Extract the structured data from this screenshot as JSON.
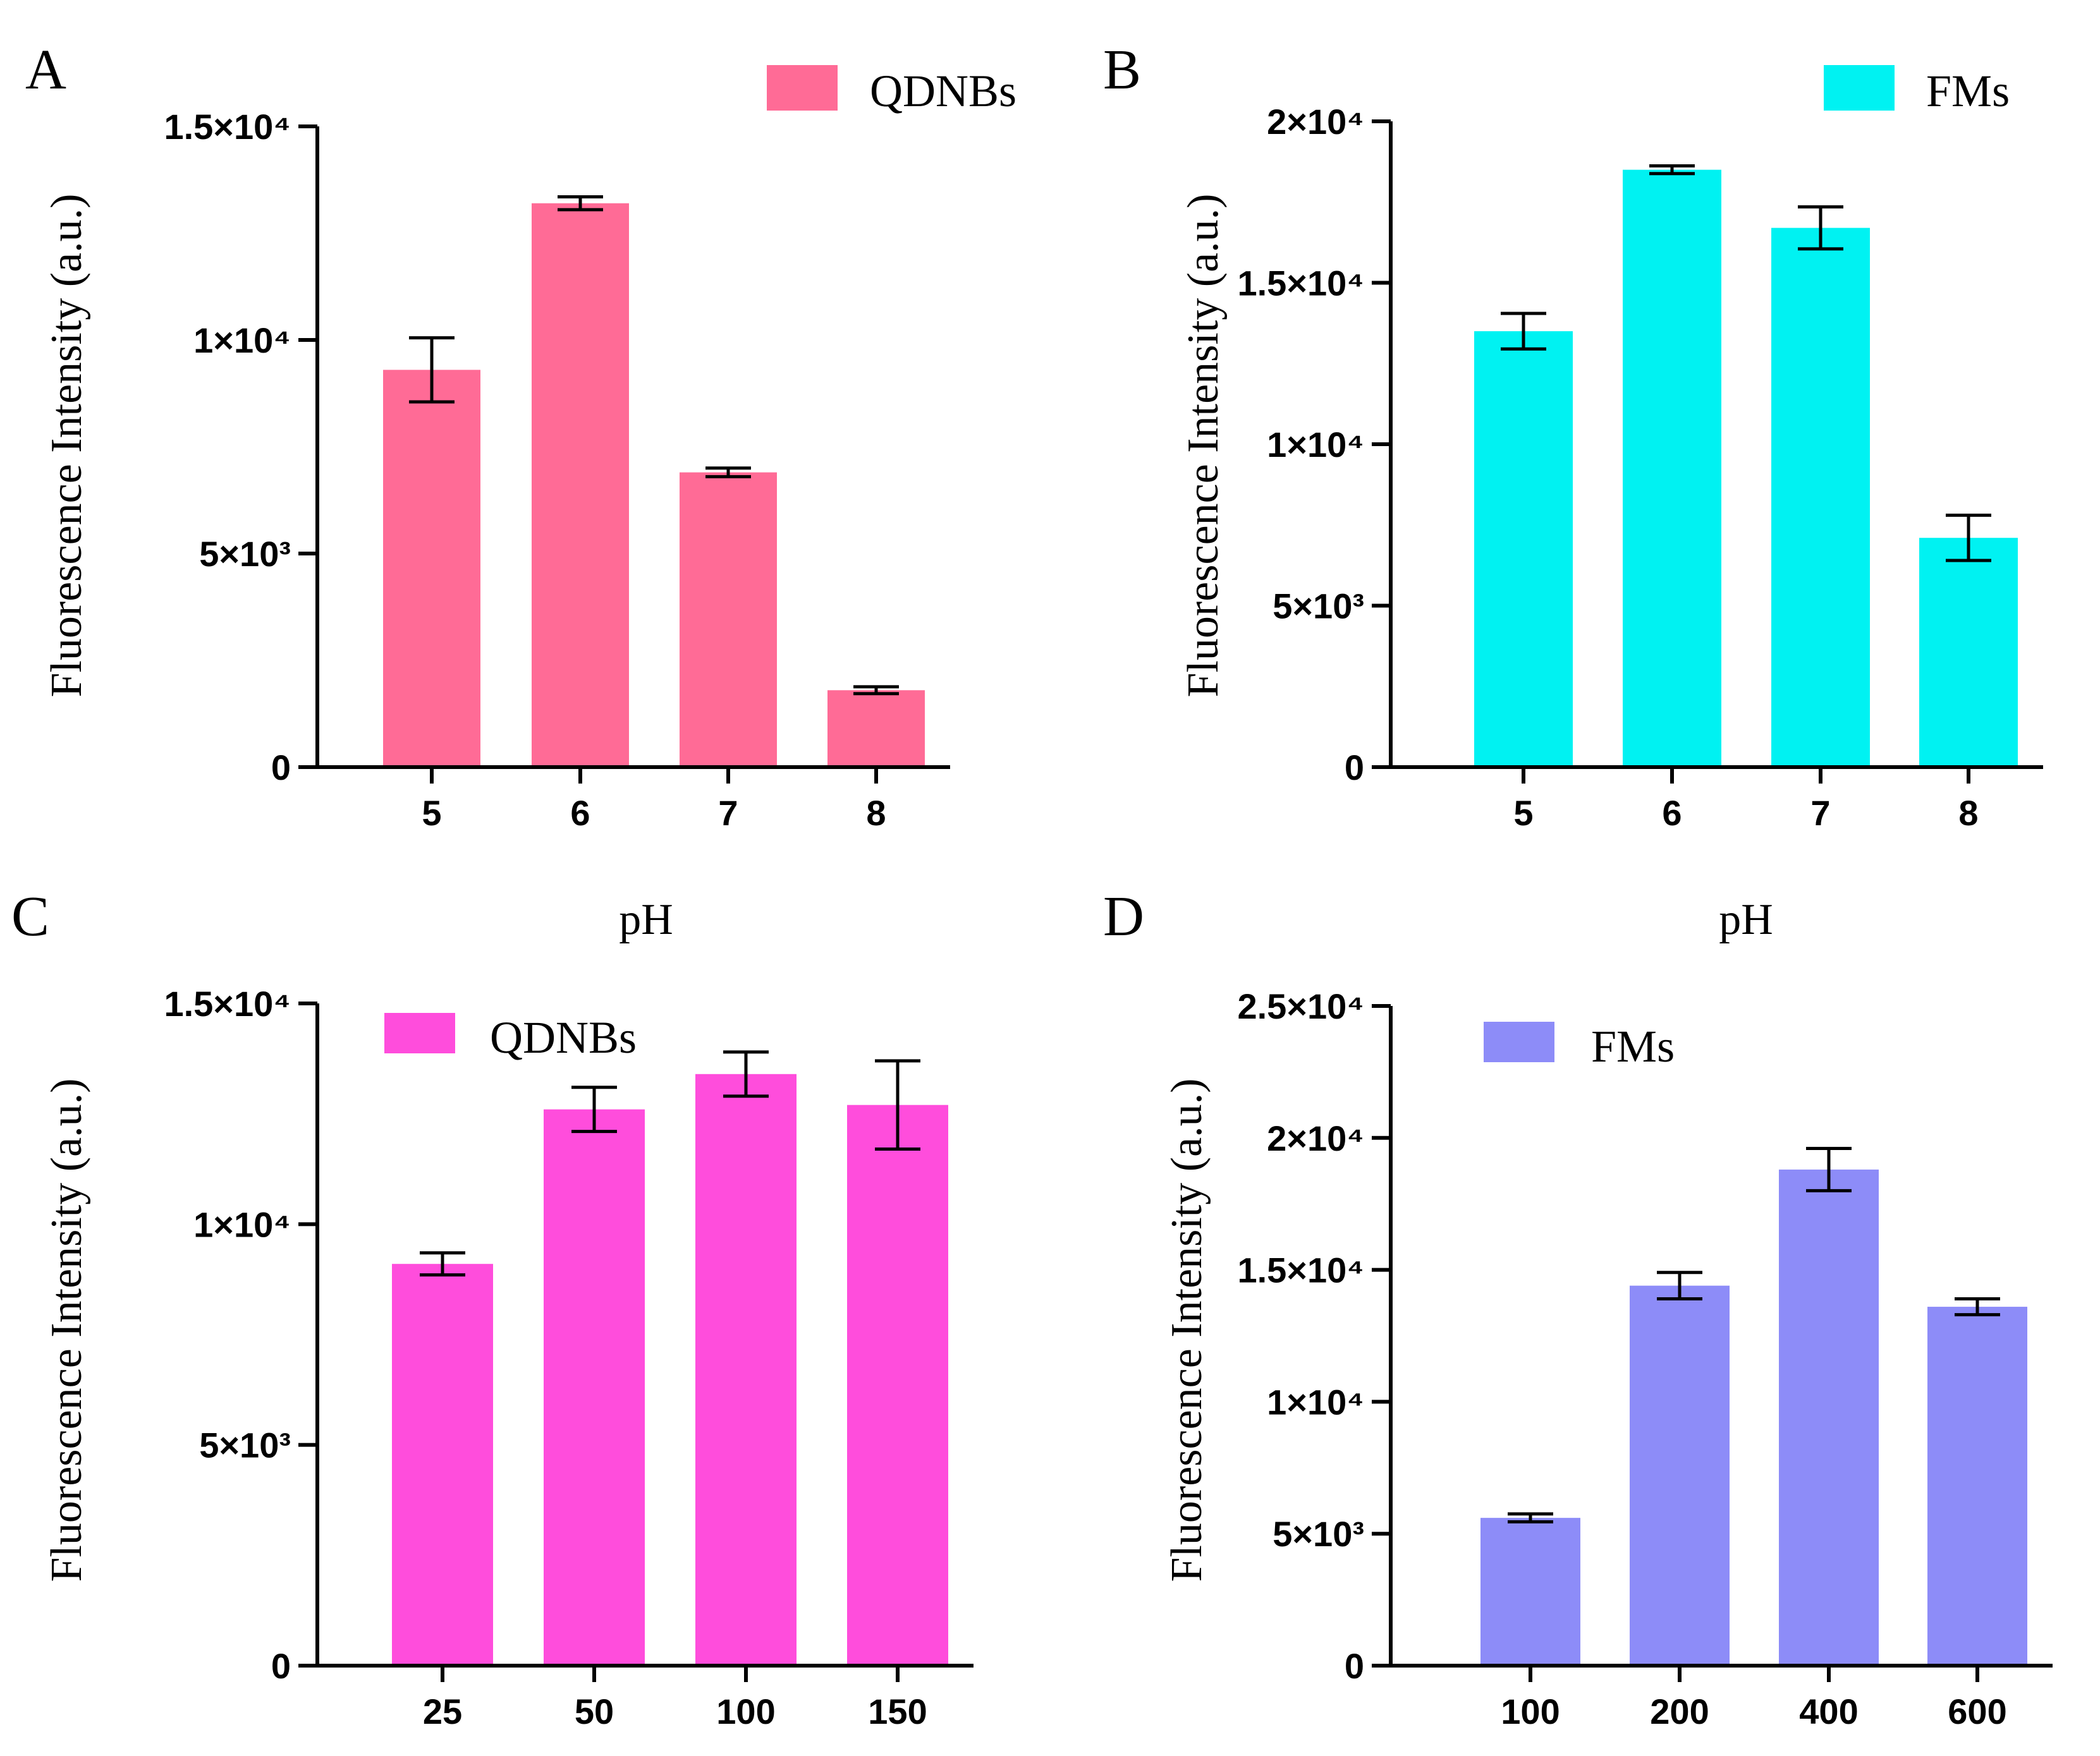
{
  "chart_data": [
    {
      "panel": "A",
      "type": "bar",
      "categories": [
        "5",
        "6",
        "7",
        "8"
      ],
      "series": [
        {
          "name": "QDNBs",
          "values": [
            9300,
            13200,
            6900,
            1800
          ],
          "errors": [
            750,
            150,
            100,
            80
          ],
          "color": "#ff6b96"
        }
      ],
      "xlabel": "pH",
      "ylabel": "Fluorescence Intensity (a.u.)",
      "ylim": [
        0,
        15000
      ],
      "yticks": [
        0,
        5000,
        10000,
        15000
      ],
      "ytick_labels": [
        "0",
        "5×10³",
        "1×10⁴",
        "1.5×10⁴"
      ],
      "legend": "top-right"
    },
    {
      "panel": "B",
      "type": "bar",
      "categories": [
        "5",
        "6",
        "7",
        "8"
      ],
      "series": [
        {
          "name": "FMs",
          "values": [
            13500,
            18500,
            16700,
            7100
          ],
          "errors": [
            550,
            120,
            650,
            700
          ],
          "color": "#00f2f2"
        }
      ],
      "xlabel": "pH",
      "ylabel": "Fluorescence Intensity (a.u.)",
      "ylim": [
        0,
        20000
      ],
      "yticks": [
        0,
        5000,
        10000,
        15000,
        20000
      ],
      "ytick_labels": [
        "0",
        "5×10³",
        "1×10⁴",
        "1.5×10⁴",
        "2×10⁴"
      ],
      "legend": "top-right"
    },
    {
      "panel": "C",
      "type": "bar",
      "categories": [
        "25",
        "50",
        "100",
        "150"
      ],
      "series": [
        {
          "name": "QDNBs",
          "values": [
            9100,
            12600,
            13400,
            12700
          ],
          "errors": [
            250,
            500,
            500,
            1000
          ],
          "color": "#ff4ddc"
        }
      ],
      "xlabel": "",
      "ylabel": "Fluorescence Intensity (a.u.)",
      "ylim": [
        0,
        15000
      ],
      "yticks": [
        0,
        5000,
        10000,
        15000
      ],
      "ytick_labels": [
        "0",
        "5×10³",
        "1×10⁴",
        "1.5×10⁴"
      ],
      "legend": "top-left"
    },
    {
      "panel": "D",
      "type": "bar",
      "categories": [
        "100",
        "200",
        "400",
        "600"
      ],
      "series": [
        {
          "name": "FMs",
          "values": [
            5600,
            14400,
            18800,
            13600
          ],
          "errors": [
            150,
            500,
            800,
            300
          ],
          "color": "#8d8cf8"
        }
      ],
      "xlabel": "",
      "ylabel": "Fluorescence Intensity (a.u.)",
      "ylim": [
        0,
        25000
      ],
      "yticks": [
        0,
        5000,
        10000,
        15000,
        20000,
        25000
      ],
      "ytick_labels": [
        "0",
        "5×10³",
        "1×10⁴",
        "1.5×10⁴",
        "2×10⁴",
        "2.5×10⁴"
      ],
      "legend": "top-left"
    }
  ]
}
